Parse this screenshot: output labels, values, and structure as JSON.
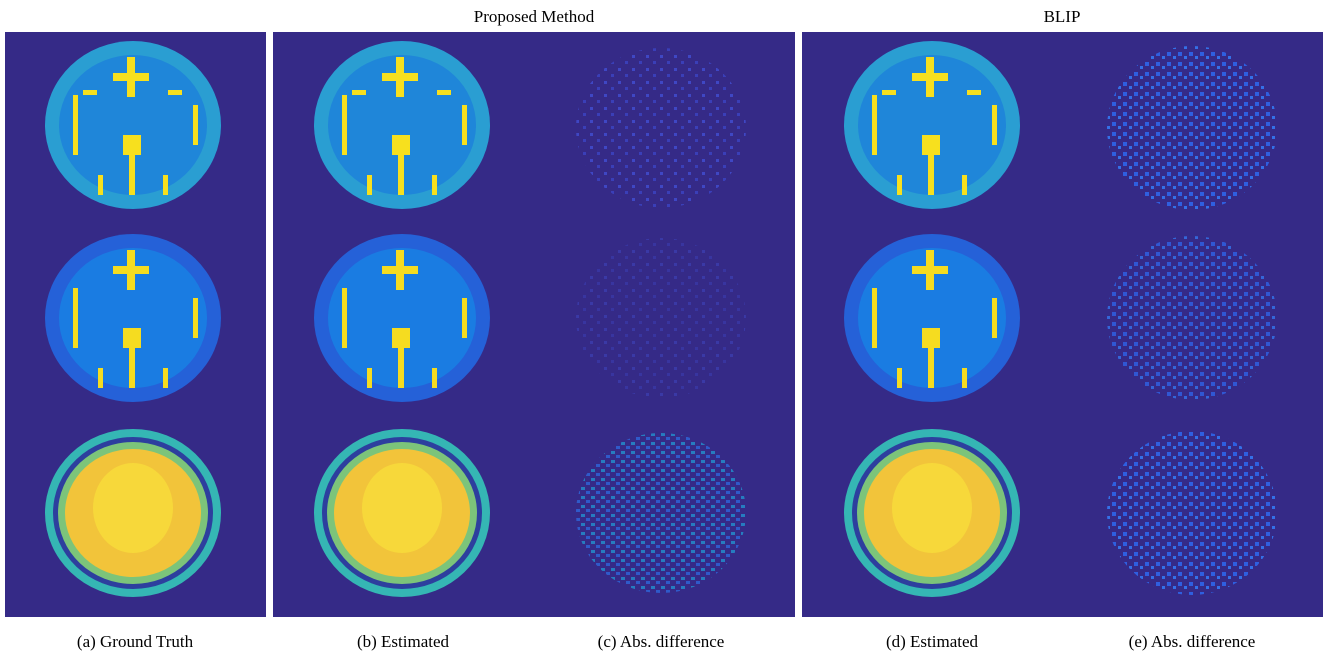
{
  "header": {
    "groups": [
      "Proposed Method",
      "BLIP"
    ]
  },
  "captions": [
    "(a) Ground Truth",
    "(b) Estimated",
    "(c) Abs. difference",
    "(d) Estimated",
    "(e) Abs. difference"
  ]
}
